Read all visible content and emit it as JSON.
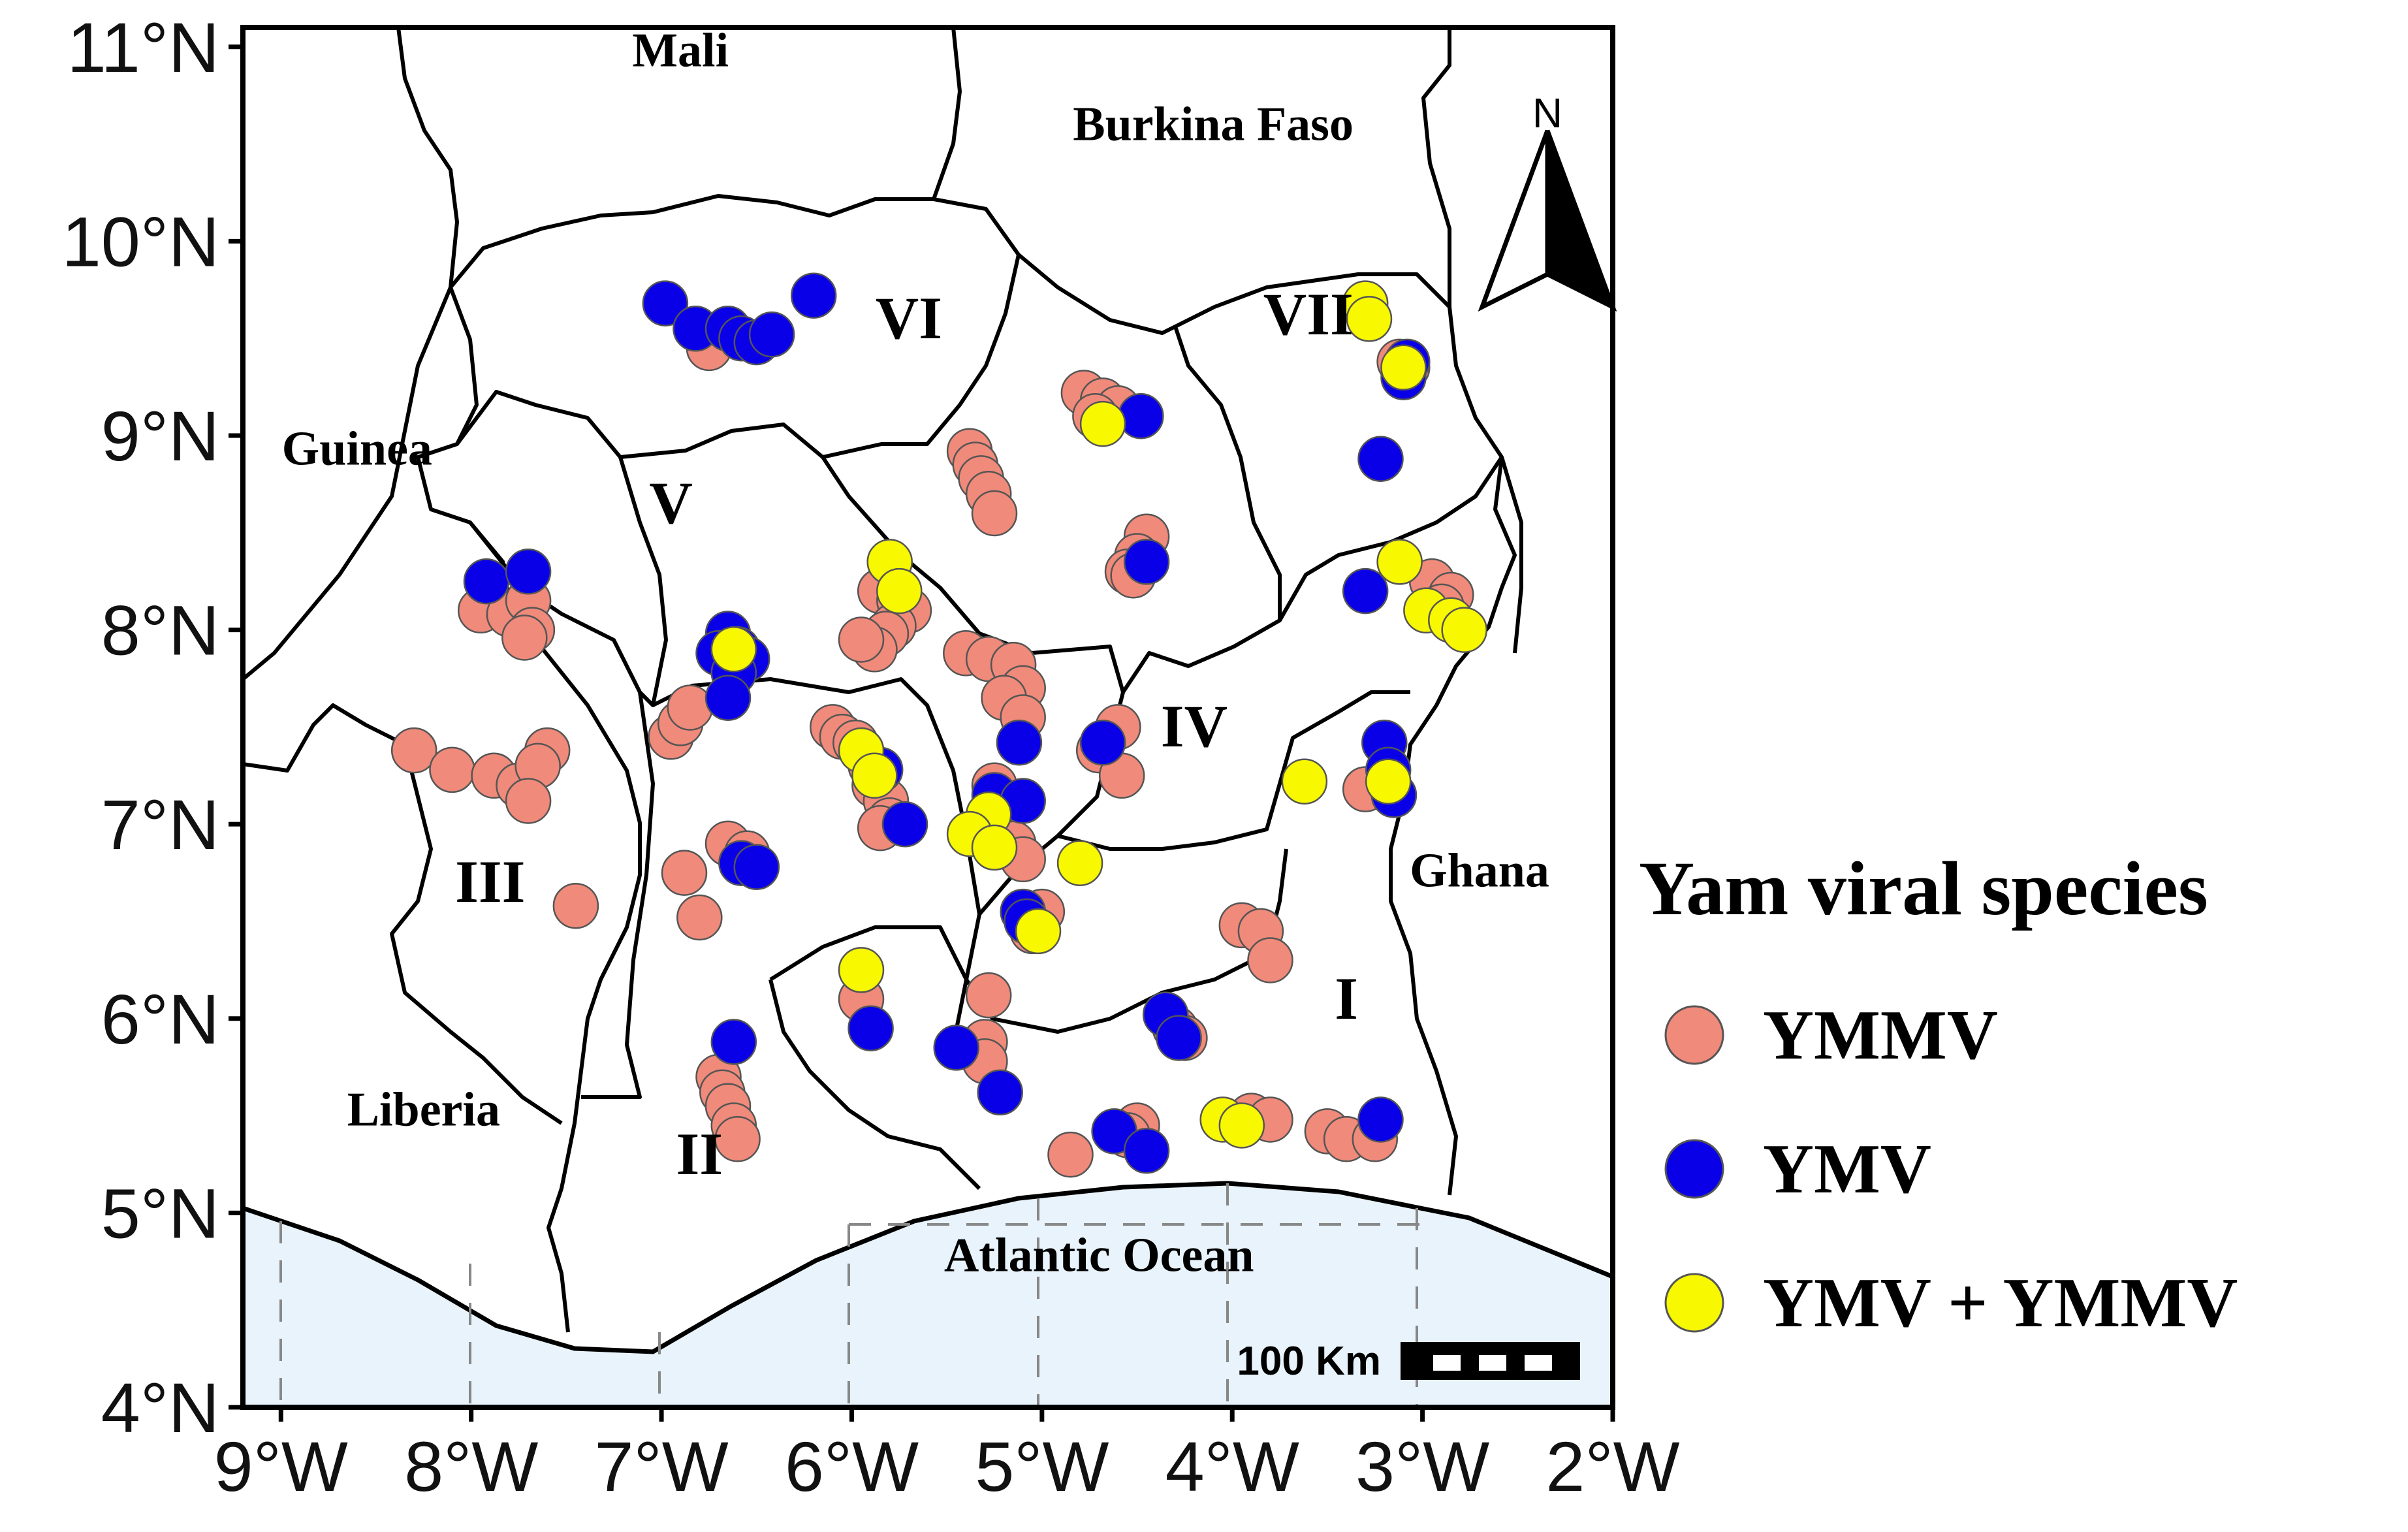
{
  "map": {
    "axes": {
      "lon_range": [
        -9.2,
        -2.0
      ],
      "lat_range": [
        4.0,
        11.1
      ],
      "lat_ticks": [
        {
          "value": 11,
          "label": "11°N"
        },
        {
          "value": 10,
          "label": "10°N"
        },
        {
          "value": 9,
          "label": "9°N"
        },
        {
          "value": 8,
          "label": "8°N"
        },
        {
          "value": 7,
          "label": "7°N"
        },
        {
          "value": 6,
          "label": "6°N"
        },
        {
          "value": 5,
          "label": "5°N"
        },
        {
          "value": 4,
          "label": "4°N"
        }
      ],
      "lon_ticks": [
        {
          "value": -9,
          "label": "9°W"
        },
        {
          "value": -8,
          "label": "8°W"
        },
        {
          "value": -7,
          "label": "7°W"
        },
        {
          "value": -6,
          "label": "6°W"
        },
        {
          "value": -5,
          "label": "5°W"
        },
        {
          "value": -4,
          "label": "4°W"
        },
        {
          "value": -3,
          "label": "3°W"
        },
        {
          "value": -2,
          "label": "2°W"
        }
      ]
    },
    "countries": [
      {
        "name": "Mali",
        "lon": -6.9,
        "lat": 10.9
      },
      {
        "name": "Burkina Faso",
        "lon": -4.1,
        "lat": 10.52
      },
      {
        "name": "Guinea",
        "lon": -8.6,
        "lat": 8.85
      },
      {
        "name": "Liberia",
        "lon": -8.25,
        "lat": 5.45
      },
      {
        "name": "Ghana",
        "lon": -2.7,
        "lat": 6.68
      }
    ],
    "water": [
      {
        "name": "Atlantic Ocean",
        "lon": -4.7,
        "lat": 4.7
      }
    ],
    "zones": [
      {
        "name": "I",
        "lon": -3.4,
        "lat": 6.0
      },
      {
        "name": "II",
        "lon": -6.8,
        "lat": 5.2
      },
      {
        "name": "III",
        "lon": -7.9,
        "lat": 6.6
      },
      {
        "name": "IV",
        "lon": -4.2,
        "lat": 7.4
      },
      {
        "name": "V",
        "lon": -6.95,
        "lat": 8.55
      },
      {
        "name": "VI",
        "lon": -5.7,
        "lat": 9.5
      },
      {
        "name": "VII",
        "lon": -3.6,
        "lat": 9.52
      }
    ],
    "north_arrow": {
      "label": "N",
      "lon": -2.5,
      "lat": 10.0
    },
    "scale_bar": {
      "label": "100 Km"
    },
    "legend": {
      "title": "Yam viral species",
      "entries": [
        {
          "key": "YMMV",
          "label": "YMMV",
          "color": "#f08a7a"
        },
        {
          "key": "YMV",
          "label": "YMV",
          "color": "#0a00e8"
        },
        {
          "key": "BOTH",
          "label": "YMV + YMMV",
          "color": "#f8f800"
        }
      ]
    },
    "points": {
      "YMMV": [
        [
          -6.75,
          9.45
        ],
        [
          -4.78,
          9.22
        ],
        [
          -4.68,
          9.18
        ],
        [
          -4.6,
          9.14
        ],
        [
          -4.72,
          9.1
        ],
        [
          -5.38,
          8.92
        ],
        [
          -5.35,
          8.85
        ],
        [
          -5.32,
          8.78
        ],
        [
          -5.28,
          8.7
        ],
        [
          -5.25,
          8.6
        ],
        [
          -4.45,
          8.48
        ],
        [
          -4.5,
          8.38
        ],
        [
          -4.55,
          8.3
        ],
        [
          -4.52,
          8.28
        ],
        [
          -7.95,
          8.1
        ],
        [
          -7.8,
          8.08
        ],
        [
          -7.7,
          8.15
        ],
        [
          -7.68,
          8.0
        ],
        [
          -7.72,
          7.96
        ],
        [
          -5.85,
          8.2
        ],
        [
          -5.75,
          8.15
        ],
        [
          -5.7,
          8.1
        ],
        [
          -5.78,
          8.02
        ],
        [
          -5.82,
          7.98
        ],
        [
          -5.88,
          7.9
        ],
        [
          -5.95,
          7.95
        ],
        [
          -5.4,
          7.88
        ],
        [
          -5.28,
          7.85
        ],
        [
          -5.15,
          7.82
        ],
        [
          -5.1,
          7.7
        ],
        [
          -5.2,
          7.65
        ],
        [
          -5.1,
          7.55
        ],
        [
          -8.3,
          7.38
        ],
        [
          -8.1,
          7.28
        ],
        [
          -7.88,
          7.25
        ],
        [
          -7.75,
          7.2
        ],
        [
          -7.6,
          7.38
        ],
        [
          -7.65,
          7.3
        ],
        [
          -7.7,
          7.12
        ],
        [
          -6.95,
          7.45
        ],
        [
          -6.9,
          7.52
        ],
        [
          -6.85,
          7.6
        ],
        [
          -6.1,
          7.5
        ],
        [
          -6.05,
          7.45
        ],
        [
          -5.98,
          7.42
        ],
        [
          -5.9,
          7.3
        ],
        [
          -5.88,
          7.2
        ],
        [
          -5.82,
          7.12
        ],
        [
          -5.8,
          7.02
        ],
        [
          -5.85,
          6.98
        ],
        [
          -5.25,
          7.2
        ],
        [
          -5.2,
          7.1
        ],
        [
          -5.28,
          7.0
        ],
        [
          -5.15,
          6.9
        ],
        [
          -5.1,
          6.82
        ],
        [
          -4.6,
          7.5
        ],
        [
          -4.7,
          7.38
        ],
        [
          -4.58,
          7.25
        ],
        [
          -6.65,
          6.9
        ],
        [
          -6.55,
          6.85
        ],
        [
          -6.88,
          6.75
        ],
        [
          -6.8,
          6.52
        ],
        [
          -7.45,
          6.58
        ],
        [
          -5.0,
          6.55
        ],
        [
          -5.05,
          6.45
        ],
        [
          -3.95,
          6.48
        ],
        [
          -3.85,
          6.45
        ],
        [
          -3.8,
          6.3
        ],
        [
          -5.95,
          6.1
        ],
        [
          -5.28,
          6.12
        ],
        [
          -5.3,
          5.88
        ],
        [
          -5.3,
          5.78
        ],
        [
          -4.3,
          5.95
        ],
        [
          -4.25,
          5.9
        ],
        [
          -6.7,
          5.7
        ],
        [
          -6.68,
          5.62
        ],
        [
          -6.65,
          5.55
        ],
        [
          -6.62,
          5.45
        ],
        [
          -6.6,
          5.38
        ],
        [
          -4.5,
          5.45
        ],
        [
          -4.55,
          5.4
        ],
        [
          -4.85,
          5.3
        ],
        [
          -3.9,
          5.5
        ],
        [
          -3.8,
          5.48
        ],
        [
          -3.5,
          5.42
        ],
        [
          -3.4,
          5.38
        ],
        [
          -3.25,
          5.38
        ],
        [
          -3.3,
          7.18
        ],
        [
          -3.15,
          7.15
        ],
        [
          -2.95,
          8.25
        ],
        [
          -2.85,
          8.18
        ],
        [
          -2.9,
          8.12
        ],
        [
          -3.12,
          9.38
        ],
        [
          -3.08,
          9.35
        ]
      ],
      "YMV": [
        [
          -6.98,
          9.68
        ],
        [
          -6.82,
          9.55
        ],
        [
          -6.65,
          9.55
        ],
        [
          -6.58,
          9.5
        ],
        [
          -6.5,
          9.48
        ],
        [
          -6.42,
          9.52
        ],
        [
          -6.2,
          9.72
        ],
        [
          -4.48,
          9.1
        ],
        [
          -3.08,
          9.38
        ],
        [
          -3.1,
          9.3
        ],
        [
          -3.22,
          8.88
        ],
        [
          -7.92,
          8.25
        ],
        [
          -7.7,
          8.3
        ],
        [
          -6.65,
          7.98
        ],
        [
          -6.6,
          7.9
        ],
        [
          -6.55,
          7.85
        ],
        [
          -6.7,
          7.88
        ],
        [
          -6.62,
          7.78
        ],
        [
          -6.65,
          7.65
        ],
        [
          -4.45,
          8.35
        ],
        [
          -3.3,
          8.2
        ],
        [
          -5.85,
          7.28
        ],
        [
          -5.72,
          7.0
        ],
        [
          -4.68,
          7.42
        ],
        [
          -3.2,
          7.42
        ],
        [
          -3.18,
          7.28
        ],
        [
          -3.15,
          7.15
        ],
        [
          -5.12,
          7.42
        ],
        [
          -5.25,
          7.15
        ],
        [
          -5.1,
          7.12
        ],
        [
          -6.58,
          6.8
        ],
        [
          -6.5,
          6.78
        ],
        [
          -5.1,
          6.55
        ],
        [
          -5.08,
          6.5
        ],
        [
          -5.9,
          5.95
        ],
        [
          -5.45,
          5.85
        ],
        [
          -5.22,
          5.62
        ],
        [
          -4.35,
          6.02
        ],
        [
          -4.28,
          5.9
        ],
        [
          -6.62,
          5.88
        ],
        [
          -4.62,
          5.42
        ],
        [
          -4.45,
          5.32
        ],
        [
          -3.22,
          5.48
        ]
      ],
      "BOTH": [
        [
          -3.3,
          9.68
        ],
        [
          -3.28,
          9.6
        ],
        [
          -3.1,
          9.35
        ],
        [
          -4.68,
          9.06
        ],
        [
          -5.8,
          8.35
        ],
        [
          -5.75,
          8.2
        ],
        [
          -6.62,
          7.9
        ],
        [
          -3.12,
          8.35
        ],
        [
          -2.98,
          8.1
        ],
        [
          -2.85,
          8.05
        ],
        [
          -2.78,
          8.0
        ],
        [
          -5.95,
          7.38
        ],
        [
          -5.88,
          7.25
        ],
        [
          -5.28,
          7.05
        ],
        [
          -5.38,
          6.95
        ],
        [
          -5.25,
          6.88
        ],
        [
          -4.8,
          6.8
        ],
        [
          -3.62,
          7.22
        ],
        [
          -3.18,
          7.22
        ],
        [
          -5.02,
          6.45
        ],
        [
          -5.95,
          6.25
        ],
        [
          -4.05,
          5.48
        ],
        [
          -3.95,
          5.45
        ]
      ]
    }
  }
}
